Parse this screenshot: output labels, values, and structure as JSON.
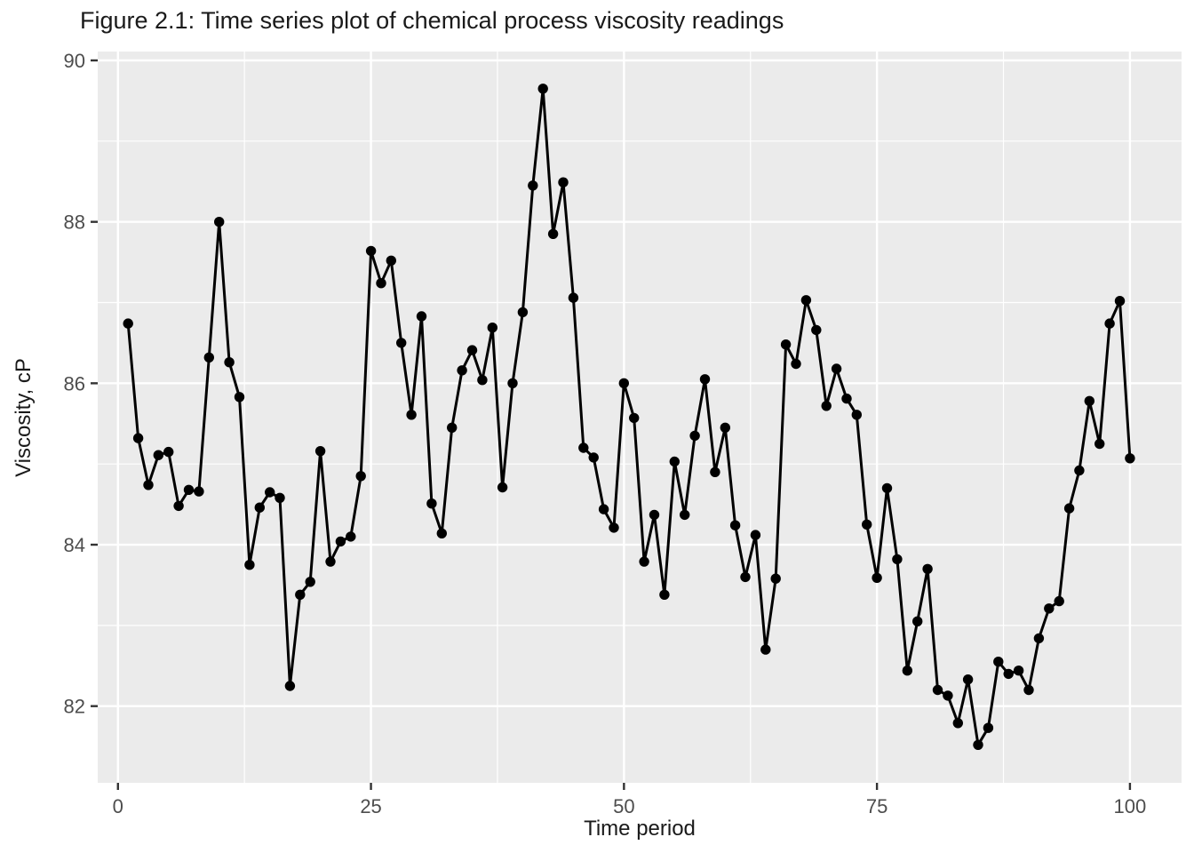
{
  "chart_data": {
    "type": "line",
    "title": "Figure 2.1: Time series plot of chemical process viscosity readings",
    "xlabel": "Time period",
    "ylabel": "Viscosity, cP",
    "x_start": 1,
    "x_step": 1,
    "x_ticks": [
      0,
      25,
      50,
      75,
      100
    ],
    "x_minor_ticks": [
      12.5,
      37.5,
      62.5,
      87.5
    ],
    "y_ticks": [
      82,
      84,
      86,
      88,
      90
    ],
    "y_minor_ticks": [
      81,
      83,
      85,
      87,
      89
    ],
    "xlim": [
      -2.0,
      105.1
    ],
    "ylim": [
      81.05,
      90.11
    ],
    "grid": "on",
    "legend": "none",
    "marker": "point",
    "series": [
      {
        "name": "Viscosity readings",
        "values": [
          86.74,
          85.32,
          84.74,
          85.11,
          85.15,
          84.48,
          84.68,
          84.66,
          86.32,
          88.0,
          86.26,
          85.83,
          83.75,
          84.46,
          84.65,
          84.58,
          82.25,
          83.38,
          83.54,
          85.16,
          83.79,
          84.04,
          84.1,
          84.85,
          87.64,
          87.24,
          87.52,
          86.5,
          85.61,
          86.83,
          84.51,
          84.14,
          85.45,
          86.16,
          86.41,
          86.04,
          86.69,
          84.71,
          86.0,
          86.88,
          88.45,
          89.65,
          87.85,
          88.49,
          87.06,
          85.2,
          85.08,
          84.44,
          84.21,
          86.0,
          85.57,
          83.79,
          84.37,
          83.38,
          85.03,
          84.37,
          85.35,
          86.05,
          84.9,
          85.45,
          84.24,
          83.6,
          84.12,
          82.7,
          83.58,
          86.48,
          86.24,
          87.03,
          86.66,
          85.72,
          86.18,
          85.81,
          85.61,
          84.25,
          83.59,
          84.7,
          83.82,
          82.44,
          83.05,
          83.7,
          82.2,
          82.13,
          81.79,
          82.33,
          81.52,
          81.73,
          82.55,
          82.4,
          82.44,
          82.2,
          82.84,
          83.21,
          83.3,
          84.45,
          84.92,
          85.78,
          85.25,
          86.74,
          87.02,
          85.07
        ]
      }
    ],
    "colors": {
      "panel_background": "#EBEBEB",
      "grid_major": "#FFFFFF",
      "grid_minor": "#FFFFFF",
      "line": "#000000",
      "point": "#000000",
      "tick_mark": "#333333",
      "tick_label": "#4D4D4D",
      "title": "#1A1A1A"
    }
  }
}
